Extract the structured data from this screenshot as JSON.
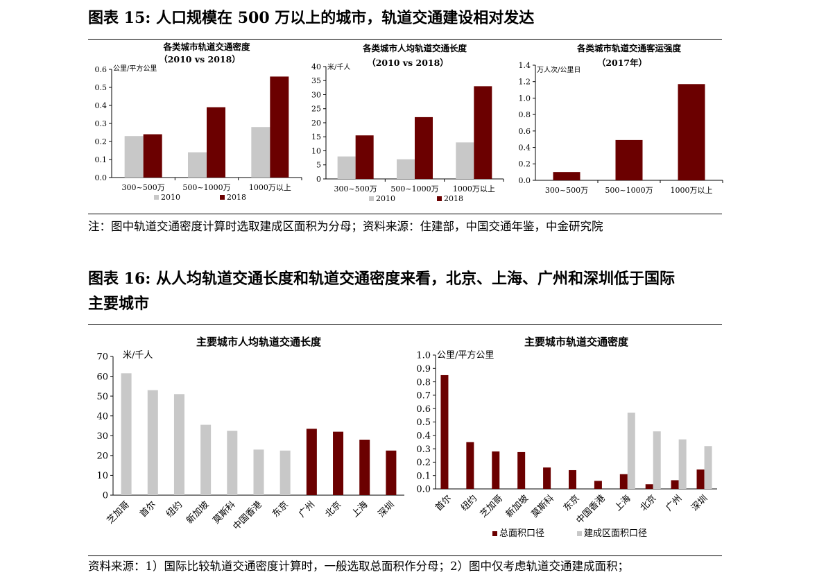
{
  "fig15": {
    "title": "图表 15: 人口规模在 500 万以上的城市，轨道交通建设相对发达",
    "note": "注：图中轨道交通密度计算时选取建成区面积为分母；资料来源：住建部，中国交通年鉴，中金研究院"
  },
  "fig16": {
    "title_line1": "图表 16:  从人均轨道交通长度和轨道交通密度来看，北京、上海、广州和深圳低于国际",
    "title_line2": "主要城市",
    "note": "资料来源：1）国际比较轨道交通密度计算时，一般选取总面积作分母；2）图中仅考虑轨道交通建成面积；"
  },
  "colors": {
    "dark": "#6b0000",
    "light": "#c8c8c8"
  },
  "chart_data": [
    {
      "type": "bar",
      "title": "各类城市轨道交通密度",
      "subtitle": "（2010 vs 2018）",
      "unit": "公里/平方公里",
      "categories": [
        "300~500万",
        "500~1000万",
        "1000万以上"
      ],
      "series": [
        {
          "name": "2010",
          "color": "light",
          "values": [
            0.23,
            0.14,
            0.28
          ]
        },
        {
          "name": "2018",
          "color": "dark",
          "values": [
            0.24,
            0.39,
            0.56
          ]
        }
      ],
      "ylim": [
        0,
        0.6
      ],
      "yticks": [
        "0.0",
        "0.1",
        "0.2",
        "0.3",
        "0.4",
        "0.5",
        "0.6"
      ],
      "legend": "bottom"
    },
    {
      "type": "bar",
      "title": "各类城市人均轨道交通长度",
      "subtitle": "（2010 vs 2018）",
      "unit": "米/千人",
      "categories": [
        "300~500万",
        "500~1000万",
        "1000万以上"
      ],
      "series": [
        {
          "name": "2010",
          "color": "light",
          "values": [
            8,
            7,
            13
          ]
        },
        {
          "name": "2018",
          "color": "dark",
          "values": [
            15.5,
            22,
            33
          ]
        }
      ],
      "ylim": [
        0,
        40
      ],
      "yticks": [
        "0",
        "5",
        "10",
        "15",
        "20",
        "25",
        "30",
        "35",
        "40"
      ],
      "legend": "bottom"
    },
    {
      "type": "bar",
      "title": "各类城市轨道交通客运强度",
      "subtitle": "（2017年）",
      "unit": "万人次/公里日",
      "categories": [
        "300~500万",
        "500~1000万",
        "1000万以上"
      ],
      "series": [
        {
          "color": "dark",
          "values": [
            0.1,
            0.49,
            1.17
          ]
        }
      ],
      "ylim": [
        0,
        1.4
      ],
      "yticks": [
        "0.0",
        "0.2",
        "0.4",
        "0.6",
        "0.8",
        "1.0",
        "1.2",
        "1.4"
      ]
    },
    {
      "type": "bar",
      "title": "主要城市人均轨道交通长度",
      "unit": "米/千人",
      "categories": [
        "芝加哥",
        "首尔",
        "纽约",
        "新加坡",
        "莫斯科",
        "中国香港",
        "东京",
        "广州",
        "北京",
        "上海",
        "深圳"
      ],
      "values": [
        61.5,
        53,
        51,
        35.5,
        32.5,
        23,
        22.5,
        33.5,
        32,
        28,
        22.5
      ],
      "bar_colors": [
        "light",
        "light",
        "light",
        "light",
        "light",
        "light",
        "light",
        "dark",
        "dark",
        "dark",
        "dark"
      ],
      "ylim": [
        0,
        70
      ],
      "yticks": [
        "0",
        "10",
        "20",
        "30",
        "40",
        "50",
        "60",
        "70"
      ]
    },
    {
      "type": "bar",
      "title": "主要城市轨道交通密度",
      "unit": "公里/平方公里",
      "categories": [
        "首尔",
        "纽约",
        "芝加哥",
        "新加坡",
        "莫斯科",
        "东京",
        "中国香港",
        "上海",
        "北京",
        "广州",
        "深圳"
      ],
      "series": [
        {
          "name": "总面积口径",
          "color": "dark",
          "values": [
            0.85,
            0.35,
            0.28,
            0.275,
            0.16,
            0.14,
            0.06,
            0.11,
            0.035,
            0.065,
            0.145
          ]
        },
        {
          "name": "建成区面积口径",
          "color": "light",
          "values": [
            null,
            null,
            null,
            null,
            null,
            null,
            null,
            0.57,
            0.43,
            0.37,
            0.32
          ]
        }
      ],
      "ylim": [
        0,
        1.0
      ],
      "yticks": [
        "0.0",
        "0.1",
        "0.2",
        "0.3",
        "0.4",
        "0.5",
        "0.6",
        "0.7",
        "0.8",
        "0.9",
        "1.0"
      ],
      "legend": "bottom"
    }
  ]
}
